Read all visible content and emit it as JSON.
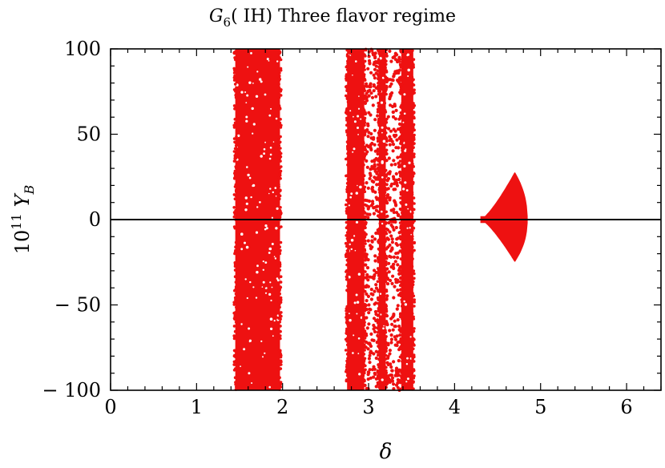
{
  "chart_data": {
    "type": "scatter",
    "title": {
      "symbol": "G",
      "subscript": "6",
      "rest": "( IH)  Three  flavor  regime"
    },
    "xlabel": "δ",
    "ylabel": {
      "base": "10",
      "exponent": "11",
      "symbol": "Y",
      "subscript": "B"
    },
    "xlim": [
      0,
      6.4
    ],
    "ylim": [
      -100,
      100
    ],
    "xticks": [
      0,
      1,
      2,
      3,
      4,
      5,
      6
    ],
    "xtick_labels": [
      "0",
      "1",
      "2",
      "3",
      "4",
      "5",
      "6"
    ],
    "yticks": [
      -100,
      -50,
      0,
      50,
      100
    ],
    "ytick_labels": [
      "− 100",
      "− 50",
      "0",
      "50",
      "100"
    ],
    "horizontal_line_y": 0,
    "grid": false,
    "marker_color": "#ee1111",
    "series": [
      {
        "regions": [
          {
            "shape": "band",
            "x_range": [
              1.45,
              1.97
            ],
            "y_range": [
              -100,
              100
            ],
            "density": "dense",
            "x_at_y_max": [
              1.45,
              1.9
            ]
          },
          {
            "shape": "band",
            "x_range": [
              2.75,
              2.95
            ],
            "y_range": [
              -100,
              100
            ],
            "density": "dense"
          },
          {
            "shape": "band",
            "x_range": [
              2.95,
              3.12
            ],
            "y_range": [
              -100,
              100
            ],
            "density": "sparse"
          },
          {
            "shape": "band",
            "x_range": [
              3.12,
              3.2
            ],
            "y_range": [
              -100,
              100
            ],
            "density": "dense"
          },
          {
            "shape": "band",
            "x_range": [
              3.2,
              3.38
            ],
            "y_range": [
              -100,
              100
            ],
            "density": "sparse"
          },
          {
            "shape": "band",
            "x_range": [
              3.38,
              3.52
            ],
            "y_range": [
              -100,
              100
            ],
            "density": "dense"
          },
          {
            "shape": "lobe",
            "x_range": [
              4.3,
              4.85
            ],
            "y_range": [
              -25,
              28
            ],
            "x_at_extreme": 4.7
          }
        ]
      }
    ]
  }
}
